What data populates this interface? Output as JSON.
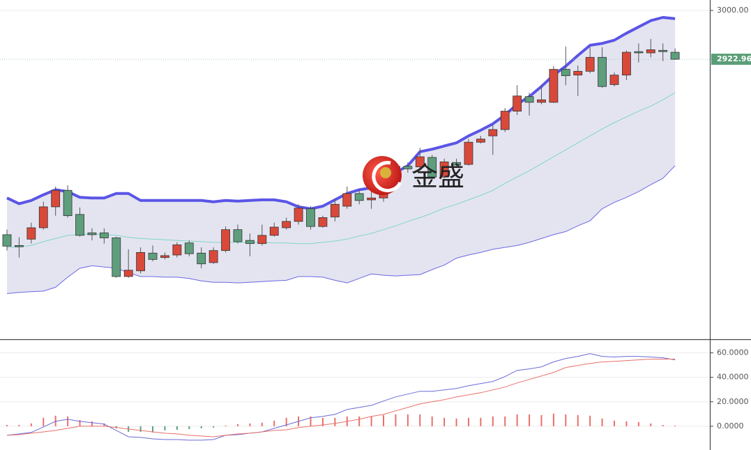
{
  "chart_data": [
    {
      "type": "candlestick",
      "open": [
        2646,
        2629,
        2639,
        2657,
        2690,
        2716,
        2678,
        2649,
        2649,
        2641,
        2580,
        2589,
        2617,
        2610,
        2614,
        2633,
        2617,
        2602,
        2621,
        2654,
        2637,
        2632,
        2645,
        2657,
        2667,
        2687,
        2659,
        2674,
        2691,
        2711,
        2701,
        2704,
        2735,
        2754,
        2753,
        2768,
        2737,
        2760,
        2757,
        2792,
        2802,
        2812,
        2841,
        2864,
        2855,
        2855,
        2907,
        2898,
        2904,
        2926,
        2883,
        2898,
        2935,
        2933,
        2937,
        2934
      ],
      "high": [
        2654,
        2642,
        2665,
        2698,
        2722,
        2724,
        2689,
        2656,
        2656,
        2643,
        2623,
        2626,
        2629,
        2618,
        2634,
        2637,
        2626,
        2626,
        2659,
        2662,
        2648,
        2662,
        2665,
        2673,
        2694,
        2691,
        2676,
        2702,
        2722,
        2717,
        2720,
        2742,
        2758,
        2760,
        2783,
        2772,
        2766,
        2766,
        2797,
        2802,
        2819,
        2846,
        2882,
        2870,
        2882,
        2912,
        2943,
        2913,
        2942,
        2942,
        2902,
        2937,
        2948,
        2955,
        2948,
        2940
      ],
      "low": [
        2621,
        2610,
        2632,
        2654,
        2676,
        2673,
        2643,
        2637,
        2632,
        2578,
        2578,
        2585,
        2604,
        2607,
        2610,
        2612,
        2593,
        2600,
        2618,
        2632,
        2612,
        2629,
        2643,
        2654,
        2662,
        2654,
        2657,
        2667,
        2687,
        2694,
        2687,
        2698,
        2731,
        2744,
        2747,
        2733,
        2735,
        2753,
        2755,
        2790,
        2772,
        2808,
        2835,
        2834,
        2852,
        2854,
        2882,
        2865,
        2901,
        2878,
        2880,
        2890,
        2918,
        2926,
        2920,
        2922
      ],
      "close": [
        2628,
        2627,
        2657,
        2690,
        2716,
        2676,
        2645,
        2646,
        2641,
        2580,
        2590,
        2618,
        2607,
        2613,
        2630,
        2616,
        2600,
        2621,
        2654,
        2635,
        2632,
        2645,
        2658,
        2667,
        2688,
        2659,
        2673,
        2694,
        2711,
        2700,
        2704,
        2735,
        2754,
        2750,
        2769,
        2737,
        2761,
        2756,
        2792,
        2797,
        2812,
        2841,
        2865,
        2855,
        2859,
        2907,
        2897,
        2904,
        2926,
        2880,
        2898,
        2934,
        2933,
        2938,
        2935,
        2922.96
      ],
      "up_color": "#d9493a",
      "down_color": "#5e9e7c",
      "bands": {
        "upper": [
          2704,
          2695,
          2700,
          2709,
          2717,
          2714,
          2705,
          2704,
          2704,
          2711,
          2711,
          2700,
          2700,
          2700,
          2700,
          2700,
          2700,
          2698,
          2700,
          2699,
          2700,
          2701,
          2701,
          2698,
          2690,
          2687,
          2691,
          2701,
          2711,
          2717,
          2720,
          2728,
          2744,
          2755,
          2777,
          2781,
          2786,
          2791,
          2802,
          2811,
          2821,
          2835,
          2852,
          2864,
          2880,
          2898,
          2912,
          2929,
          2945,
          2948,
          2953,
          2964,
          2974,
          2984,
          2989,
          2987
        ],
        "middle": [
          2626,
          2627,
          2629,
          2635,
          2640,
          2645,
          2646,
          2647,
          2646,
          2645,
          2642,
          2640,
          2639,
          2638,
          2637,
          2636,
          2635,
          2634,
          2634,
          2634,
          2634,
          2634,
          2633,
          2633,
          2632,
          2632,
          2634,
          2636,
          2639,
          2644,
          2648,
          2654,
          2660,
          2667,
          2673,
          2680,
          2688,
          2694,
          2701,
          2708,
          2716,
          2727,
          2737,
          2747,
          2758,
          2769,
          2780,
          2791,
          2802,
          2813,
          2823,
          2832,
          2841,
          2849,
          2859,
          2870
        ],
        "lower": [
          2553,
          2555,
          2556,
          2557,
          2563,
          2579,
          2593,
          2597,
          2595,
          2593,
          2586,
          2580,
          2580,
          2579,
          2579,
          2577,
          2573,
          2571,
          2571,
          2570,
          2571,
          2572,
          2573,
          2574,
          2580,
          2580,
          2579,
          2574,
          2570,
          2577,
          2584,
          2582,
          2581,
          2582,
          2583,
          2591,
          2598,
          2609,
          2614,
          2618,
          2623,
          2626,
          2629,
          2634,
          2640,
          2646,
          2651,
          2660,
          2668,
          2687,
          2697,
          2705,
          2714,
          2725,
          2735,
          2755
        ],
        "upper_color": "#5a55e6",
        "middle_color": "#7fd6c2",
        "lower_color": "#6b68e0",
        "fill": "#e4e4f1"
      },
      "ylim": [
        2481,
        3016.5
      ],
      "yticks": [
        {
          "value": 3000,
          "label": "3000.00"
        }
      ],
      "last_price": {
        "value": 2922.96,
        "label": "2922.96"
      },
      "last_price_color": "#5a9e78",
      "watermark": "金盛"
    },
    {
      "type": "macd",
      "series": [
        {
          "color": "#6b6bd6",
          "values": [
            -7.4,
            -6.3,
            -5.1,
            -0.6,
            4.0,
            5.7,
            4.0,
            2.9,
            1.7,
            -3.4,
            -8.6,
            -9.1,
            -10.3,
            -10.9,
            -10.9,
            -11.4,
            -11.4,
            -10.9,
            -7.4,
            -6.9,
            -5.7,
            -4.6,
            -1.7,
            1.1,
            4.0,
            6.9,
            8.0,
            9.7,
            13.7,
            15.4,
            17.1,
            20.6,
            24.0,
            26.3,
            28.6,
            28.6,
            29.7,
            30.9,
            33.1,
            34.9,
            36.6,
            40.6,
            45.7,
            46.9,
            48.6,
            52.6,
            55.4,
            57.1,
            59.4,
            57.1,
            56.6,
            57.1,
            57.1,
            56.6,
            56.0,
            54.3
          ]
        },
        {
          "color": "#e8706a",
          "values": [
            -7.4,
            -6.9,
            -5.7,
            -4.6,
            -3.4,
            -1.7,
            0,
            0,
            0,
            -1.1,
            -2.3,
            -3.4,
            -4.6,
            -5.7,
            -6.3,
            -7.4,
            -8.0,
            -8.6,
            -7.4,
            -6.3,
            -5.7,
            -4.6,
            -3.4,
            -2.9,
            -1.1,
            0,
            1.1,
            2.3,
            4.0,
            5.7,
            8.0,
            9.7,
            12.6,
            15.4,
            18.3,
            20.0,
            21.7,
            24.0,
            25.7,
            27.4,
            29.7,
            32.0,
            35.4,
            38.3,
            41.1,
            44.0,
            48.0,
            49.7,
            51.4,
            52.6,
            53.1,
            53.7,
            54.3,
            54.9,
            54.9,
            54.9
          ]
        }
      ],
      "histogram": [
        1.1,
        1.1,
        2.3,
        6.9,
        8.6,
        8.0,
        5.1,
        4.0,
        2.3,
        -1.7,
        -4.6,
        -4.6,
        -5.1,
        -3.4,
        -2.9,
        -2.3,
        -1.7,
        -1.1,
        0.6,
        1.7,
        2.3,
        2.9,
        4.6,
        6.9,
        8.0,
        8.0,
        6.9,
        6.9,
        8.0,
        8.0,
        8.0,
        9.1,
        9.7,
        9.7,
        9.7,
        8.0,
        6.9,
        6.3,
        6.9,
        6.9,
        8.0,
        8.0,
        9.7,
        9.7,
        9.1,
        10.3,
        9.7,
        9.1,
        8.6,
        6.3,
        4.6,
        4.0,
        3.4,
        2.3,
        1.1,
        0.6
      ],
      "histogram_up_color": "#e8706a",
      "histogram_down_color": "#5e9e7c",
      "ylim": [
        -20,
        70
      ],
      "yticks": [
        {
          "value": 60,
          "label": "60.0000"
        },
        {
          "value": 40,
          "label": "40.0000"
        },
        {
          "value": 20,
          "label": "20.0000"
        },
        {
          "value": 0,
          "label": "0.0000"
        }
      ],
      "grid": true
    }
  ]
}
